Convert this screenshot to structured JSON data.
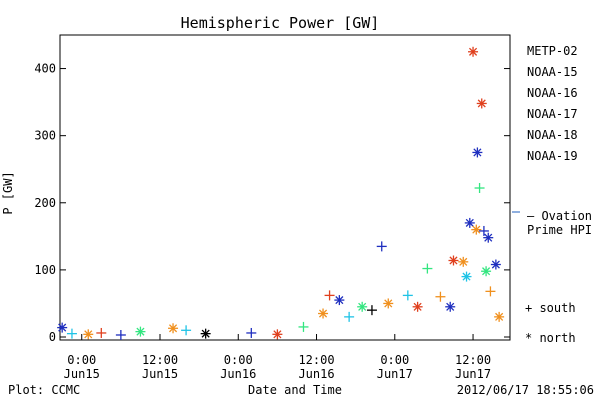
{
  "chart_data": {
    "type": "scatter",
    "title": "Hemispheric Power [GW]",
    "ylabel": "P [GW]",
    "xlabel": "Date and Time",
    "ylim": [
      0,
      450
    ],
    "yticks": [
      0,
      100,
      200,
      300,
      400
    ],
    "xlim_hours_note": "",
    "xticks": [
      {
        "t": "2012-06-15T00:00",
        "line1": "0:00",
        "line2": "Jun15"
      },
      {
        "t": "2012-06-15T12:00",
        "line1": "12:00",
        "line2": "Jun15"
      },
      {
        "t": "2012-06-16T00:00",
        "line1": "0:00",
        "line2": "Jun16"
      },
      {
        "t": "2012-06-16T12:00",
        "line1": "12:00",
        "line2": "Jun16"
      },
      {
        "t": "2012-06-17T00:00",
        "line1": "0:00",
        "line2": "Jun17"
      },
      {
        "t": "2012-06-17T12:00",
        "line1": "12:00",
        "line2": "Jun17"
      }
    ],
    "xrange": [
      "2012-06-14T20:40",
      "2012-06-17T17:40"
    ],
    "legend_position": "right",
    "series": [
      {
        "name": "METP-02",
        "color": "#000000"
      },
      {
        "name": "NOAA-15",
        "color": "#1f2fbf"
      },
      {
        "name": "NOAA-16",
        "color": "#1fc3e6"
      },
      {
        "name": "NOAA-17",
        "color": "#33e680"
      },
      {
        "name": "NOAA-18",
        "color": "#f0901e"
      },
      {
        "name": "NOAA-19",
        "color": "#e0401e"
      }
    ],
    "ovation": {
      "label_line1": "— Ovation",
      "label_line2": "Prime HPI",
      "color": "#1f5fbf"
    },
    "markers": {
      "south": "+ south",
      "north": "* north"
    },
    "points": [
      {
        "t": "2012-06-14T21:00",
        "v": 14,
        "s": 1,
        "m": "*"
      },
      {
        "t": "2012-06-14T22:30",
        "v": 5,
        "s": 2,
        "m": "+"
      },
      {
        "t": "2012-06-15T01:00",
        "v": 4,
        "s": 4,
        "m": "*"
      },
      {
        "t": "2012-06-15T03:00",
        "v": 6,
        "s": 5,
        "m": "+"
      },
      {
        "t": "2012-06-15T06:00",
        "v": 3,
        "s": 1,
        "m": "+"
      },
      {
        "t": "2012-06-15T09:00",
        "v": 8,
        "s": 3,
        "m": "*"
      },
      {
        "t": "2012-06-15T14:00",
        "v": 13,
        "s": 4,
        "m": "*"
      },
      {
        "t": "2012-06-15T16:00",
        "v": 10,
        "s": 2,
        "m": "+"
      },
      {
        "t": "2012-06-15T19:00",
        "v": 5,
        "s": 0,
        "m": "*"
      },
      {
        "t": "2012-06-16T02:00",
        "v": 6,
        "s": 1,
        "m": "+"
      },
      {
        "t": "2012-06-16T06:00",
        "v": 4,
        "s": 5,
        "m": "*"
      },
      {
        "t": "2012-06-16T10:00",
        "v": 15,
        "s": 3,
        "m": "+"
      },
      {
        "t": "2012-06-16T13:00",
        "v": 35,
        "s": 4,
        "m": "*"
      },
      {
        "t": "2012-06-16T14:00",
        "v": 62,
        "s": 5,
        "m": "+"
      },
      {
        "t": "2012-06-16T15:30",
        "v": 55,
        "s": 1,
        "m": "*"
      },
      {
        "t": "2012-06-16T17:00",
        "v": 30,
        "s": 2,
        "m": "+"
      },
      {
        "t": "2012-06-16T19:00",
        "v": 45,
        "s": 3,
        "m": "*"
      },
      {
        "t": "2012-06-16T20:30",
        "v": 40,
        "s": 0,
        "m": "+"
      },
      {
        "t": "2012-06-16T22:00",
        "v": 135,
        "s": 1,
        "m": "+"
      },
      {
        "t": "2012-06-16T23:00",
        "v": 50,
        "s": 4,
        "m": "*"
      },
      {
        "t": "2012-06-17T02:00",
        "v": 62,
        "s": 2,
        "m": "+"
      },
      {
        "t": "2012-06-17T03:30",
        "v": 45,
        "s": 5,
        "m": "*"
      },
      {
        "t": "2012-06-17T05:00",
        "v": 102,
        "s": 3,
        "m": "+"
      },
      {
        "t": "2012-06-17T07:00",
        "v": 60,
        "s": 4,
        "m": "+"
      },
      {
        "t": "2012-06-17T08:30",
        "v": 45,
        "s": 1,
        "m": "*"
      },
      {
        "t": "2012-06-17T09:00",
        "v": 114,
        "s": 5,
        "m": "*"
      },
      {
        "t": "2012-06-17T10:30",
        "v": 112,
        "s": 4,
        "m": "*"
      },
      {
        "t": "2012-06-17T11:00",
        "v": 90,
        "s": 2,
        "m": "*"
      },
      {
        "t": "2012-06-17T11:30",
        "v": 170,
        "s": 1,
        "m": "*"
      },
      {
        "t": "2012-06-17T12:00",
        "v": 425,
        "s": 5,
        "m": "*"
      },
      {
        "t": "2012-06-17T12:30",
        "v": 160,
        "s": 4,
        "m": "*"
      },
      {
        "t": "2012-06-17T12:40",
        "v": 275,
        "s": 1,
        "m": "*"
      },
      {
        "t": "2012-06-17T13:00",
        "v": 222,
        "s": 3,
        "m": "+"
      },
      {
        "t": "2012-06-17T13:20",
        "v": 348,
        "s": 5,
        "m": "*"
      },
      {
        "t": "2012-06-17T13:40",
        "v": 158,
        "s": 1,
        "m": "+"
      },
      {
        "t": "2012-06-17T14:00",
        "v": 98,
        "s": 3,
        "m": "*"
      },
      {
        "t": "2012-06-17T14:20",
        "v": 148,
        "s": 1,
        "m": "*"
      },
      {
        "t": "2012-06-17T14:40",
        "v": 68,
        "s": 4,
        "m": "+"
      },
      {
        "t": "2012-06-17T15:30",
        "v": 108,
        "s": 1,
        "m": "*"
      },
      {
        "t": "2012-06-17T16:00",
        "v": 30,
        "s": 4,
        "m": "*"
      }
    ]
  },
  "footer": {
    "left": "Plot: CCMC",
    "center": "Date and Time",
    "right": "2012/06/17 18:55:06"
  }
}
